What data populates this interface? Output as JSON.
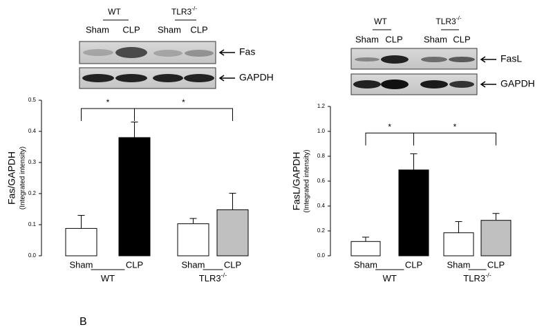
{
  "panel_label": "B",
  "chart_data": [
    {
      "type": "bar",
      "ylabel": "Fas/GAPDH",
      "ylabel_sub": "(Integrated intensity)",
      "categories": [
        "Sham",
        "CLP",
        "Sham",
        "CLP"
      ],
      "groups": [
        {
          "name": "WT"
        },
        {
          "name": "TLR3",
          "sup": "-/-"
        }
      ],
      "bands": [
        "Fas",
        "GAPDH"
      ],
      "values": [
        0.088,
        0.38,
        0.103,
        0.148
      ],
      "errors": [
        0.042,
        0.05,
        0.017,
        0.053
      ],
      "colors": [
        "#ffffff",
        "#000000",
        "#ffffff",
        "#c0c0c0"
      ],
      "ylim": [
        0,
        0.5
      ],
      "yticks": [
        {
          "value": 0,
          "label": "0.0"
        },
        0.1,
        0.2,
        0.3,
        0.4,
        0.5
      ],
      "significance": [
        {
          "from": 0,
          "to": 1,
          "label": "*"
        },
        {
          "from": 1,
          "to": 3,
          "label": "*"
        }
      ]
    },
    {
      "type": "bar",
      "ylabel": "FasL/GAPDH",
      "ylabel_sub": "(Integrated intensity)",
      "categories": [
        "Sham",
        "CLP",
        "Sham",
        "CLP"
      ],
      "groups": [
        {
          "name": "WT"
        },
        {
          "name": "TLR3",
          "sup": "-/-"
        }
      ],
      "bands": [
        "FasL",
        "GAPDH"
      ],
      "values": [
        0.115,
        0.69,
        0.185,
        0.285
      ],
      "errors": [
        0.035,
        0.13,
        0.09,
        0.055
      ],
      "colors": [
        "#ffffff",
        "#000000",
        "#ffffff",
        "#c0c0c0"
      ],
      "ylim": [
        0,
        1.2
      ],
      "yticks": [
        {
          "value": 0,
          "label": "0.0"
        },
        0.2,
        0.4,
        0.6,
        0.8,
        {
          "value": 1,
          "label": "1.0"
        },
        1.2
      ],
      "significance": [
        {
          "from": 0,
          "to": 1,
          "label": "*"
        },
        {
          "from": 1,
          "to": 3,
          "label": "*"
        }
      ]
    }
  ]
}
